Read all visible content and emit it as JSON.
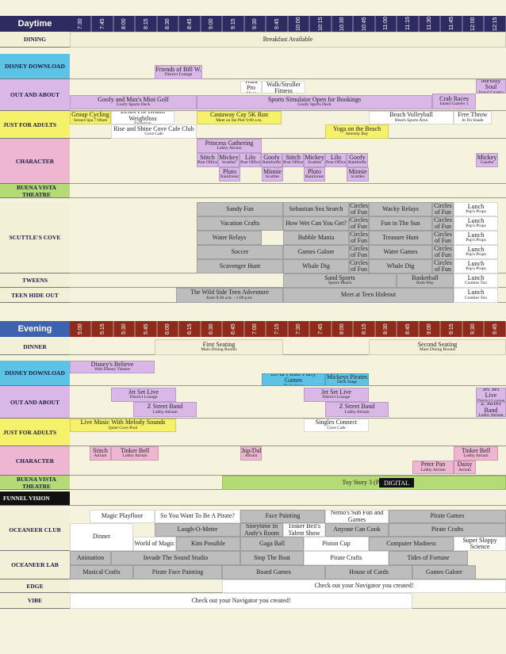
{
  "sections": [
    {
      "title": "Daytime",
      "times": [
        "7:30",
        "7:45",
        "8:00",
        "8:15",
        "8:30",
        "8:45",
        "9:00",
        "9:15",
        "9:30",
        "9:45",
        "10:00",
        "10:15",
        "10:30",
        "10:45",
        "11:00",
        "11:15",
        "11:30",
        "11:45",
        "12:00",
        "12:15"
      ],
      "rows": [
        {
          "label": "DINING",
          "events": [
            {
              "title": "Breakfast Available"
            }
          ]
        },
        {
          "label": "DISNEY DOWNLOAD",
          "events": [
            {
              "title": "Friends of Bill W.",
              "sub": "District Lounge"
            }
          ]
        },
        {
          "label": "OUT AND ABOUT",
          "events": [
            {
              "title": "Walk Pro",
              "sub": "Meet"
            },
            {
              "title": "Power Walk/Stroller Fitness",
              "sub": "Castaway Cay"
            },
            {
              "title": "Melody Soul",
              "sub": "Island Gazebo"
            },
            {
              "title": "Goofy and Max's Mini Golf",
              "sub": "Goofy Sports Deck"
            },
            {
              "title": "Sports Simulator Open for Bookings",
              "sub": "Goofy Sports Deck"
            },
            {
              "title": "Crab Races",
              "sub": "Island Gazebo 1"
            }
          ]
        },
        {
          "label": "JUST FOR ADULTS",
          "events": [
            {
              "title": "Group Cycling",
              "sub": "Senses Spa 7:00am"
            },
            {
              "title": "Detox For Health Weightloss",
              "sub": "Evolution"
            },
            {
              "title": "Castaway Cay 5K Run",
              "sub": "Meet on the Pier 9:00 a.m."
            },
            {
              "title": "Beach Volleyball",
              "sub": "Beach Sports Area"
            },
            {
              "title": "Free Throw",
              "sub": "In Da Shade"
            },
            {
              "title": "Rise and Shine Cove Cafe Club",
              "sub": "Cove Cafe"
            },
            {
              "title": "Yoga on the Beach",
              "sub": "Serenity Bay"
            }
          ]
        },
        {
          "label": "CHARACTER",
          "events": [
            {
              "title": "Princess Gathering",
              "sub": "Lobby Atrium"
            },
            {
              "title": "Stitch",
              "sub": "Post Office"
            },
            {
              "title": "Mickey",
              "sub": "Scuttles"
            },
            {
              "title": "Lilo",
              "sub": "Post Office"
            },
            {
              "title": "Goofy",
              "sub": "Rainforest"
            },
            {
              "title": "Stitch",
              "sub": "Post Office"
            },
            {
              "title": "Mickey",
              "sub": "Scuttles"
            },
            {
              "title": "Lilo",
              "sub": "Post Office"
            },
            {
              "title": "Goofy",
              "sub": "Rainforest"
            },
            {
              "title": "Pluto",
              "sub": "Rainforest"
            },
            {
              "title": "Minnie",
              "sub": "Scuttles"
            },
            {
              "title": "Pluto",
              "sub": "Rainforest"
            },
            {
              "title": "Minnie",
              "sub": "Scuttles"
            },
            {
              "title": "Mickey",
              "sub": "Gazebo"
            }
          ]
        },
        {
          "label": "BUENA VISTA THEATRE",
          "events": []
        },
        {
          "label": "SCUTTLE'S COVE",
          "events": [
            {
              "title": "Sandy Fun"
            },
            {
              "title": "Sebastian Sea Search"
            },
            {
              "title": "Circles of Fun"
            },
            {
              "title": "Wacky Relays"
            },
            {
              "title": "Circles of Fun"
            },
            {
              "title": "Lunch",
              "sub": "Pop's Props"
            },
            {
              "title": "Vacation Crafts"
            },
            {
              "title": "How Wet Can You Get?"
            },
            {
              "title": "Circles of Fun"
            },
            {
              "title": "Fun in The Sun"
            },
            {
              "title": "Circles of Fun"
            },
            {
              "title": "Lunch",
              "sub": "Pop's Props"
            },
            {
              "title": "Water Relays"
            },
            {
              "title": "Bubble Mania"
            },
            {
              "title": "Circles of Fun"
            },
            {
              "title": "Treasure Hunt"
            },
            {
              "title": "Circles of Fun"
            },
            {
              "title": "Lunch",
              "sub": "Pop's Props"
            },
            {
              "title": "Soccer"
            },
            {
              "title": "Games Galore"
            },
            {
              "title": "Circles of Fun"
            },
            {
              "title": "Water Games"
            },
            {
              "title": "Circles of Fun"
            },
            {
              "title": "Lunch",
              "sub": "Pop's Props"
            },
            {
              "title": "Scavenger Hunt"
            },
            {
              "title": "Whale Dig"
            },
            {
              "title": "Circles of Fun"
            },
            {
              "title": "Whale Dig"
            },
            {
              "title": "Circles of Fun"
            },
            {
              "title": "Lunch",
              "sub": "Pop's Props"
            }
          ]
        },
        {
          "label": "TWEENS",
          "events": [
            {
              "title": "Sand Sports",
              "sub": "Sports Beach"
            },
            {
              "title": "Basketball",
              "sub": "Rum Way"
            },
            {
              "title": "Lunch",
              "sub": "Cookies Too"
            }
          ]
        },
        {
          "label": "TEEN HIDE OUT",
          "events": [
            {
              "title": "The Wild Side Teen Adventure",
              "sub": "from 9:30 a.m. - 1:00 p.m."
            },
            {
              "title": "Meet at Teen Hideout"
            },
            {
              "title": "Lunch",
              "sub": "Cookies Too"
            }
          ]
        }
      ]
    },
    {
      "title": "Evening",
      "times": [
        "5:00",
        "5:15",
        "5:30",
        "5:45",
        "6:00",
        "6:15",
        "6:30",
        "6:45",
        "7:00",
        "7:15",
        "7:30",
        "7:45",
        "8:00",
        "8:15",
        "8:30",
        "8:45",
        "9:00",
        "9:15",
        "9:30",
        "9:45"
      ],
      "rows": [
        {
          "label": "DINNER",
          "events": [
            {
              "title": "First Seating",
              "sub": "Main Dining Rooms"
            },
            {
              "title": "Second Seating",
              "sub": "Main Dining Rooms"
            }
          ]
        },
        {
          "label": "DISNEY DOWNLOAD",
          "events": [
            {
              "title": "Disney's Believe",
              "sub": "Walt Disney Theatre"
            },
            {
              "title": "DJ & Pirate Party Games",
              "sub": "Deck Stage"
            },
            {
              "title": "Mickeys Pirates",
              "sub": "Deck Stage"
            }
          ]
        },
        {
          "label": "OUT AND ABOUT",
          "events": [
            {
              "title": "Jet Set Live",
              "sub": "District Lounge"
            },
            {
              "title": "Z Street Band",
              "sub": "Lobby Atrium"
            },
            {
              "title": "Jet Set Live",
              "sub": "District Lounge"
            },
            {
              "title": "Z Street Band",
              "sub": "Lobby Atrium"
            },
            {
              "title": "Jet Set Live",
              "sub": "District Lounge"
            },
            {
              "title": "Z Street Band",
              "sub": "Lobby Atrium"
            }
          ]
        },
        {
          "label": "JUST FOR ADULTS",
          "events": [
            {
              "title": "Live Music With Melody Sounds",
              "sub": "Quiet Cove Pool"
            },
            {
              "title": "Singles Connect",
              "sub": "Cove Cafe"
            }
          ]
        },
        {
          "label": "CHARACTER",
          "events": [
            {
              "title": "Stitch",
              "sub": "Atrium"
            },
            {
              "title": "Tinker Bell",
              "sub": "Lobby Atrium"
            },
            {
              "title": "Chip/Dale",
              "sub": "Atrium"
            },
            {
              "title": "Tinker Bell",
              "sub": "Lobby Atrium"
            },
            {
              "title": "Peter Pan",
              "sub": "Lobby Atrium"
            },
            {
              "title": "Daisy",
              "sub": "Atrium"
            }
          ]
        },
        {
          "label": "BUENA VISTA THEATRE",
          "events": [
            {
              "title": "Toy Story 3 (PG)"
            },
            {
              "title": "DISNEY DIGITAL",
              "sub": "3-D"
            }
          ]
        },
        {
          "label": "FUNNEL VISION",
          "events": []
        },
        {
          "label": "OCEANEER CLUB",
          "events": [
            {
              "title": "Magic Playfloor"
            },
            {
              "title": "So You Want To Be A Pirate?"
            },
            {
              "title": "Face Painting"
            },
            {
              "title": "Nemo's Sub Fun and Games"
            },
            {
              "title": "Pirate Games"
            },
            {
              "title": "Laugh-O-Meter"
            },
            {
              "title": "Storytime In Andy's Room"
            },
            {
              "title": "Tinker Bell's Talent Show"
            },
            {
              "title": "Anyone Can Cook"
            },
            {
              "title": "Pirate Crafts"
            },
            {
              "title": "Dinner"
            },
            {
              "title": "World of Magic"
            },
            {
              "title": "Kim Possible"
            },
            {
              "title": "Gaga Ball"
            },
            {
              "title": "Piston Cup"
            },
            {
              "title": "Computer Madness"
            },
            {
              "title": "Super Sloppy Science"
            }
          ]
        },
        {
          "label": "OCEANEER LAB",
          "events": [
            {
              "title": "Animation"
            },
            {
              "title": "Invade The Sound Studio"
            },
            {
              "title": "Stop The Boat"
            },
            {
              "title": "Pirate Crafts"
            },
            {
              "title": "Tides of Fortune"
            },
            {
              "title": "Musical Crafts"
            },
            {
              "title": "Pirate Face Painting"
            },
            {
              "title": "Board Games"
            },
            {
              "title": "House of Cards"
            },
            {
              "title": "Games Galore"
            }
          ]
        },
        {
          "label": "EDGE",
          "events": [
            {
              "title": "Check out your Navigator you created!"
            }
          ]
        },
        {
          "label": "VIBE",
          "events": [
            {
              "title": "Check out your Navigator you created!"
            }
          ]
        }
      ]
    }
  ]
}
